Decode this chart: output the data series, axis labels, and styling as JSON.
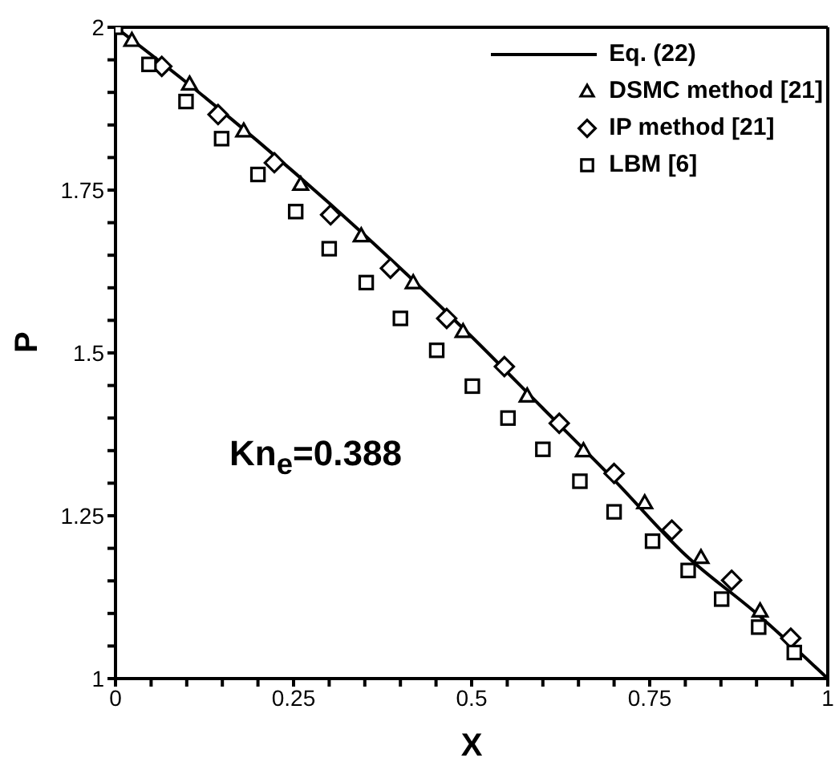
{
  "chart_data": {
    "type": "scatter",
    "xlabel": "X",
    "ylabel": "P",
    "annotations": [
      "Kn$_{e}$=0.388"
    ],
    "xlim": [
      0,
      1
    ],
    "ylim": [
      1,
      2
    ],
    "xticks": [
      0,
      {
        "value": 0.05,
        "label": null
      },
      {
        "value": 0.1,
        "label": null
      },
      {
        "value": 0.15,
        "label": null
      },
      {
        "value": 0.2,
        "label": null
      },
      0.25,
      {
        "value": 0.3,
        "label": null
      },
      {
        "value": 0.35,
        "label": null
      },
      {
        "value": 0.4,
        "label": null
      },
      {
        "value": 0.45,
        "label": null
      },
      0.5,
      {
        "value": 0.55,
        "label": null
      },
      {
        "value": 0.6,
        "label": null
      },
      {
        "value": 0.65,
        "label": null
      },
      {
        "value": 0.7,
        "label": null
      },
      0.75,
      {
        "value": 0.8,
        "label": null
      },
      {
        "value": 0.85,
        "label": null
      },
      {
        "value": 0.9,
        "label": null
      },
      {
        "value": 0.95,
        "label": null
      },
      1
    ],
    "yticks": [
      1,
      {
        "value": 1.05,
        "label": null
      },
      {
        "value": 1.1,
        "label": null
      },
      {
        "value": 1.15,
        "label": null
      },
      {
        "value": 1.2,
        "label": null
      },
      1.25,
      {
        "value": 1.3,
        "label": null
      },
      {
        "value": 1.35,
        "label": null
      },
      {
        "value": 1.4,
        "label": null
      },
      {
        "value": 1.45,
        "label": null
      },
      1.5,
      {
        "value": 1.55,
        "label": null
      },
      {
        "value": 1.6,
        "label": null
      },
      {
        "value": 1.65,
        "label": null
      },
      {
        "value": 1.7,
        "label": null
      },
      1.75,
      {
        "value": 1.8,
        "label": null
      },
      {
        "value": 1.85,
        "label": null
      },
      {
        "value": 1.9,
        "label": null
      },
      {
        "value": 1.95,
        "label": null
      },
      2
    ],
    "legend": "top right",
    "series": [
      {
        "name": "Eq. (22)",
        "type": "line",
        "marker": "none",
        "line_style": "solid",
        "color": "#000000",
        "x": [
          0,
          0.1,
          0.2,
          0.3,
          0.4,
          0.5,
          0.6,
          0.7,
          0.8,
          0.9,
          1
        ],
        "values": [
          2,
          1.915,
          1.825,
          1.73,
          1.63,
          1.525,
          1.415,
          1.305,
          1.19,
          1.1,
          1
        ]
      },
      {
        "name": "DSMC method [21]",
        "marker": "triangle",
        "color": "#000000",
        "x": [
          0.023,
          0.104,
          0.18,
          0.26,
          0.345,
          0.418,
          0.488,
          0.578,
          0.657,
          0.743,
          0.822,
          0.905
        ],
        "values": [
          1.98,
          1.913,
          1.841,
          1.759,
          1.68,
          1.608,
          1.533,
          1.434,
          1.35,
          1.27,
          1.186,
          1.104
        ]
      },
      {
        "name": "IP method [21]",
        "marker": "diamond",
        "color": "#000000",
        "x": [
          0.065,
          0.144,
          0.223,
          0.302,
          0.386,
          0.465,
          0.546,
          0.623,
          0.7,
          0.781,
          0.865,
          0.948
        ],
        "values": [
          1.94,
          1.866,
          1.792,
          1.712,
          1.63,
          1.553,
          1.479,
          1.392,
          1.315,
          1.228,
          1.151,
          1.062
        ]
      },
      {
        "name": "LBM [6]",
        "marker": "square",
        "color": "#000000",
        "x": [
          0,
          0.047,
          0.099,
          0.149,
          0.2,
          0.253,
          0.3,
          0.352,
          0.4,
          0.451,
          0.501,
          0.551,
          0.6,
          0.652,
          0.7,
          0.754,
          0.804,
          0.851,
          0.903,
          0.953
        ],
        "values": [
          2,
          1.943,
          1.886,
          1.829,
          1.774,
          1.717,
          1.66,
          1.608,
          1.553,
          1.504,
          1.449,
          1.4,
          1.352,
          1.303,
          1.256,
          1.211,
          1.166,
          1.122,
          1.079,
          1.04
        ]
      }
    ]
  }
}
